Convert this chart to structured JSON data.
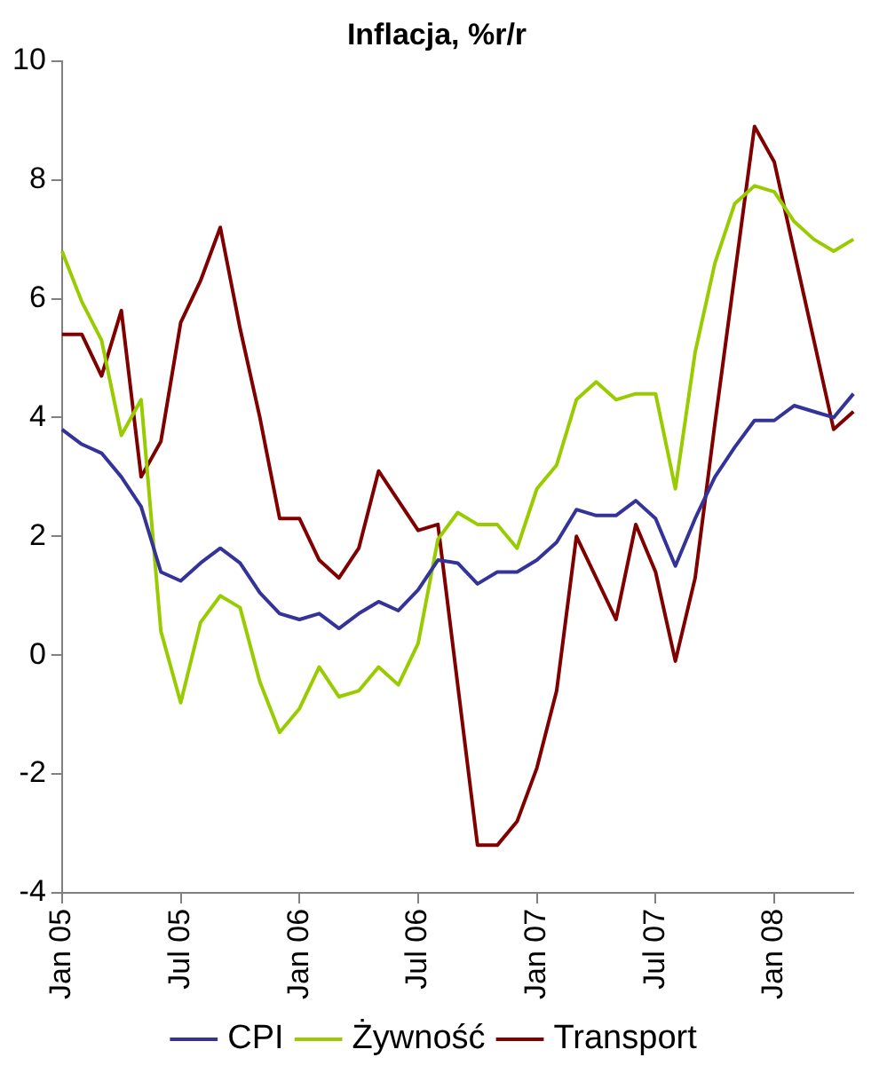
{
  "chart_data": {
    "type": "line",
    "title": "Inflacja, %r/r",
    "categories": [
      "Jan 05",
      null,
      null,
      null,
      null,
      null,
      "Jul 05",
      null,
      null,
      null,
      null,
      null,
      "Jan 06",
      null,
      null,
      null,
      null,
      null,
      "Jul 06",
      null,
      null,
      null,
      null,
      null,
      "Jan 07",
      null,
      null,
      null,
      null,
      null,
      "Jul 07",
      null,
      null,
      null,
      null,
      null,
      "Jan 08",
      null,
      null,
      null,
      null
    ],
    "series": [
      {
        "name": "CPI",
        "color": "#333399",
        "values": [
          3.8,
          3.55,
          3.4,
          3.0,
          2.5,
          1.4,
          1.25,
          1.55,
          1.8,
          1.55,
          1.05,
          0.7,
          0.6,
          0.7,
          0.45,
          0.7,
          0.9,
          0.75,
          1.1,
          1.6,
          1.55,
          1.2,
          1.4,
          1.4,
          1.6,
          1.9,
          2.45,
          2.35,
          2.35,
          2.6,
          2.3,
          1.5,
          2.3,
          3.0,
          3.5,
          3.95,
          3.95,
          4.2,
          4.1,
          4.0,
          4.4
        ]
      },
      {
        "name": "Żywność",
        "color": "#99cc00",
        "values": [
          6.8,
          5.95,
          5.3,
          3.7,
          4.3,
          0.4,
          -0.8,
          0.55,
          1.0,
          0.8,
          -0.45,
          -1.3,
          -0.9,
          -0.2,
          -0.7,
          -0.6,
          -0.2,
          -0.5,
          0.2,
          1.95,
          2.4,
          2.2,
          2.2,
          1.8,
          2.8,
          3.2,
          4.3,
          4.6,
          4.3,
          4.4,
          4.4,
          2.8,
          5.1,
          6.6,
          7.6,
          7.9,
          7.8,
          7.3,
          7.0,
          6.8,
          7.0
        ]
      },
      {
        "name": "Transport",
        "color": "#800000",
        "values": [
          5.4,
          5.4,
          4.7,
          5.8,
          3.0,
          3.6,
          5.6,
          6.3,
          7.2,
          5.5,
          4.0,
          2.3,
          2.3,
          1.6,
          1.3,
          1.8,
          3.1,
          2.6,
          2.1,
          2.2,
          -0.5,
          -3.2,
          -3.2,
          -2.8,
          -1.9,
          -0.6,
          2.0,
          1.3,
          0.6,
          2.2,
          1.4,
          -0.1,
          1.3,
          3.9,
          6.4,
          8.9,
          8.3,
          6.8,
          5.3,
          3.8,
          4.1
        ]
      }
    ],
    "ylim": [
      -4,
      10
    ],
    "yticks": [
      -4,
      -2,
      0,
      2,
      4,
      6,
      8,
      10
    ],
    "grid": false,
    "legend": "bottom",
    "marker": "none",
    "line_style": "solid"
  }
}
